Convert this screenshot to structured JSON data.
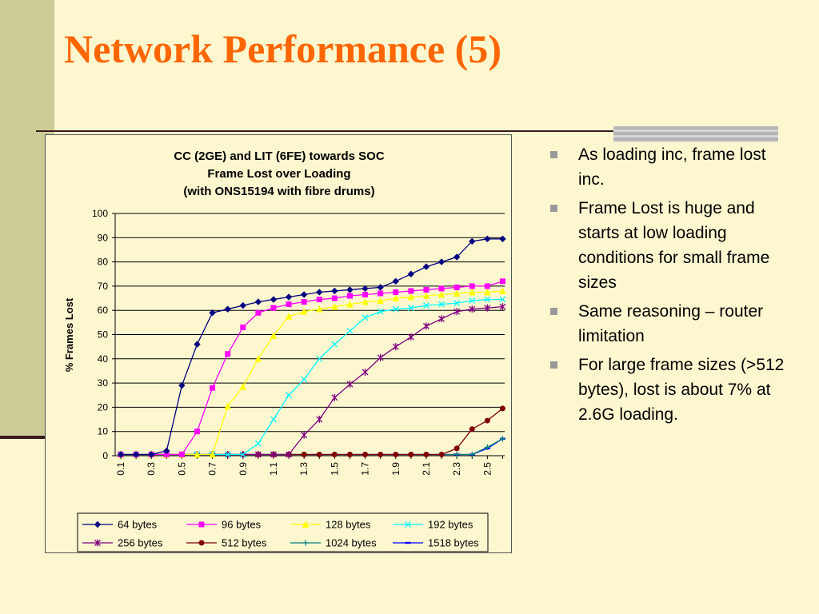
{
  "slide": {
    "title": "Network Performance (5)",
    "bullets": [
      "As loading inc, frame lost inc.",
      "Frame Lost is huge and starts at low loading conditions for small frame sizes",
      "Same reasoning – router limitation",
      "For large frame sizes (>512 bytes), lost is about 7% at 2.6G loading."
    ]
  },
  "chart_data": {
    "type": "line",
    "title_lines": [
      "CC (2GE) and LIT (6FE) towards SOC",
      "Frame Lost over Loading",
      "(with ONS15194 with fibre drums)"
    ],
    "ylabel": "% Frames Lost",
    "xlabel": "",
    "ylim": [
      0,
      100
    ],
    "yticks": [
      0,
      10,
      20,
      30,
      40,
      50,
      60,
      70,
      80,
      90,
      100
    ],
    "x": [
      0.1,
      0.2,
      0.3,
      0.4,
      0.5,
      0.6,
      0.7,
      0.8,
      0.9,
      1.0,
      1.1,
      1.2,
      1.3,
      1.4,
      1.5,
      1.6,
      1.7,
      1.8,
      1.9,
      2.0,
      2.1,
      2.2,
      2.3,
      2.4,
      2.5,
      2.6
    ],
    "xtick_labels": [
      "0.1",
      "0.3",
      "0.5",
      "0.7",
      "0.9",
      "1.1",
      "1.3",
      "1.5",
      "1.7",
      "1.9",
      "2.1",
      "2.3",
      "2.5"
    ],
    "grid": "horizontal",
    "legend_position": "bottom",
    "series": [
      {
        "name": "64 bytes",
        "color": "#000080",
        "marker": "diamond",
        "values": [
          0.5,
          0.5,
          0.5,
          2,
          29,
          46,
          59,
          60.5,
          62,
          63.5,
          64.5,
          65.5,
          66.5,
          67.5,
          68,
          68.5,
          69,
          69.5,
          72,
          75,
          78,
          80,
          82,
          88.5,
          89.5,
          89.5
        ]
      },
      {
        "name": "96 bytes",
        "color": "#ff00ff",
        "marker": "square",
        "values": [
          0.5,
          0.5,
          0.5,
          0.5,
          0.5,
          10,
          28,
          42,
          53,
          59,
          61,
          62.5,
          63.5,
          64.5,
          65,
          66,
          66.5,
          67,
          67.5,
          68,
          68.5,
          69,
          69.5,
          70,
          70,
          72
        ]
      },
      {
        "name": "128 bytes",
        "color": "#ffff00",
        "marker": "triangle",
        "values": [
          0.5,
          0.5,
          0.5,
          0.5,
          0.5,
          0.5,
          0.5,
          20.5,
          28.5,
          40,
          49.5,
          57.5,
          59.5,
          60.5,
          61.5,
          62.5,
          63.5,
          64,
          65,
          65.5,
          66,
          66.5,
          67,
          67.5,
          67.5,
          68
        ]
      },
      {
        "name": "192 bytes",
        "color": "#00ffff",
        "marker": "x",
        "values": [
          0.5,
          0.5,
          0.5,
          0.5,
          0.5,
          0.5,
          0.5,
          0.5,
          0.5,
          5,
          15,
          25,
          31.5,
          40,
          46,
          51.5,
          57,
          59.5,
          60.5,
          61,
          62,
          62.5,
          63,
          64,
          64.5,
          64.5
        ]
      },
      {
        "name": "256 bytes",
        "color": "#800080",
        "marker": "star",
        "values": [
          0.5,
          0.5,
          0.5,
          0.5,
          0.5,
          0.5,
          0.5,
          0.5,
          0.5,
          0.5,
          0.5,
          0.5,
          8.5,
          15,
          24,
          29.5,
          34.5,
          40.5,
          45,
          49,
          53.5,
          56.5,
          59.5,
          60.5,
          61,
          61.5
        ]
      },
      {
        "name": "512 bytes",
        "color": "#800000",
        "marker": "circle",
        "values": [
          0.5,
          0.5,
          0.5,
          0.5,
          0.5,
          0.5,
          0.5,
          0.5,
          0.5,
          0.5,
          0.5,
          0.5,
          0.5,
          0.5,
          0.5,
          0.5,
          0.5,
          0.5,
          0.5,
          0.5,
          0.5,
          0.5,
          3,
          11,
          14.5,
          19.5
        ]
      },
      {
        "name": "1024 bytes",
        "color": "#008080",
        "marker": "plus",
        "values": [
          0.5,
          0.5,
          0.5,
          0.5,
          0.5,
          0.5,
          0.5,
          0.5,
          0.5,
          0.5,
          0.5,
          0.5,
          0.5,
          0.5,
          0.5,
          0.5,
          0.5,
          0.5,
          0.5,
          0.5,
          0.5,
          0.5,
          0.5,
          0.5,
          3.5,
          7
        ]
      },
      {
        "name": "1518 bytes",
        "color": "#0000ff",
        "marker": "dash",
        "values": [
          0.5,
          0.5,
          0.5,
          0.5,
          0.5,
          0.5,
          0.5,
          0.5,
          0.5,
          0.5,
          0.5,
          0.5,
          0.5,
          0.5,
          0.5,
          0.5,
          0.5,
          0.5,
          0.5,
          0.5,
          0.5,
          0.5,
          0.5,
          0.5,
          3,
          7
        ]
      }
    ]
  }
}
